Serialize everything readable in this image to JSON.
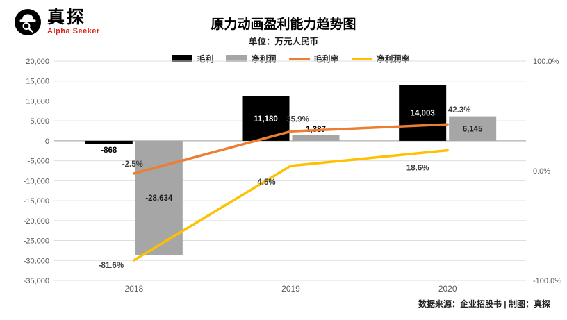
{
  "brand": {
    "name": "真探",
    "tagline": "Alpha Seeker"
  },
  "footer": {
    "source": "数据来源：企业招股书 | 制图：真探"
  },
  "chart_data": {
    "type": "combo",
    "title": "原力动画盈利能力趋势图",
    "subtitle": "单位：万元人民币",
    "categories": [
      "2018",
      "2019",
      "2020"
    ],
    "series": [
      {
        "id": "gross-profit",
        "name": "毛利",
        "type": "bar",
        "axis": "left",
        "color": "#000000",
        "values": [
          -868,
          11180,
          14003
        ],
        "labels": [
          "-868",
          "11,180",
          "14,003"
        ]
      },
      {
        "id": "net-profit",
        "name": "净利润",
        "type": "bar",
        "axis": "left",
        "color": "#a6a6a6",
        "values": [
          -28634,
          1387,
          6145
        ],
        "labels": [
          "-28,634",
          "1,387",
          "6,145"
        ]
      },
      {
        "id": "gross-margin",
        "name": "毛利率",
        "type": "line",
        "axis": "right",
        "color": "#ed7d31",
        "values": [
          -2.5,
          35.9,
          42.3
        ],
        "labels": [
          "-2.5%",
          "35.9%",
          "42.3%"
        ]
      },
      {
        "id": "net-margin",
        "name": "净利润率",
        "type": "line",
        "axis": "right",
        "color": "#ffc000",
        "values": [
          -81.6,
          4.5,
          18.6
        ],
        "labels": [
          "-81.6%",
          "4.5%",
          "18.6%"
        ]
      }
    ],
    "left_axis": {
      "min": -35000,
      "max": 20000,
      "step": 5000,
      "tick_labels": [
        "20,000",
        "15,000",
        "10,000",
        "5,000",
        "0",
        "-5,000",
        "-10,000",
        "-15,000",
        "-20,000",
        "-25,000",
        "-30,000",
        "-35,000"
      ]
    },
    "right_axis": {
      "min": -100,
      "max": 100,
      "tick_labels": [
        {
          "value": 100,
          "label": "100.0%"
        },
        {
          "value": 0,
          "label": "0.0%"
        },
        {
          "value": -100,
          "label": "-100.0%"
        }
      ]
    },
    "legend_position": "top",
    "grid": true
  }
}
